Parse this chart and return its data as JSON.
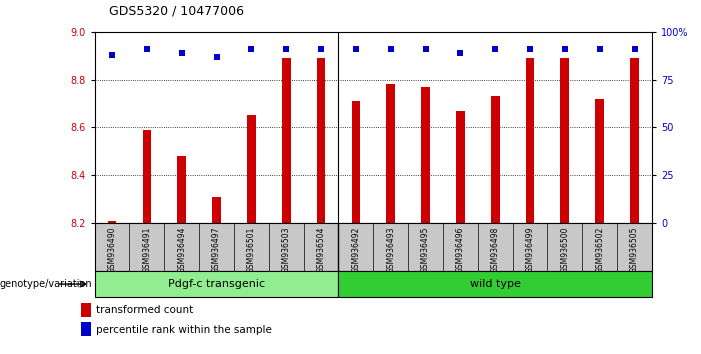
{
  "title": "GDS5320 / 10477006",
  "samples": [
    "GSM936490",
    "GSM936491",
    "GSM936494",
    "GSM936497",
    "GSM936501",
    "GSM936503",
    "GSM936504",
    "GSM936492",
    "GSM936493",
    "GSM936495",
    "GSM936496",
    "GSM936498",
    "GSM936499",
    "GSM936500",
    "GSM936502",
    "GSM936505"
  ],
  "bar_values": [
    8.21,
    8.59,
    8.48,
    8.31,
    8.65,
    8.89,
    8.89,
    8.71,
    8.78,
    8.77,
    8.67,
    8.73,
    8.89,
    8.89,
    8.72,
    8.89
  ],
  "percentile_values": [
    88,
    91,
    89,
    87,
    91,
    91,
    91,
    91,
    91,
    91,
    89,
    91,
    91,
    91,
    91,
    91
  ],
  "bar_color": "#cc0000",
  "percentile_color": "#0000cc",
  "ylim_left": [
    8.2,
    9.0
  ],
  "ylim_right": [
    0,
    100
  ],
  "yticks_left": [
    8.2,
    8.4,
    8.6,
    8.8,
    9.0
  ],
  "yticks_right": [
    0,
    25,
    50,
    75,
    100
  ],
  "ytick_labels_right": [
    "0",
    "25",
    "50",
    "75",
    "100%"
  ],
  "group1_label": "Pdgf-c transgenic",
  "group2_label": "wild type",
  "group1_count": 7,
  "group2_count": 9,
  "group1_color": "#90ee90",
  "group2_color": "#32cd32",
  "genotype_label": "genotype/variation",
  "legend_bar_label": "transformed count",
  "legend_pct_label": "percentile rank within the sample",
  "bg_color": "#ffffff",
  "tick_area_color": "#c8c8c8"
}
